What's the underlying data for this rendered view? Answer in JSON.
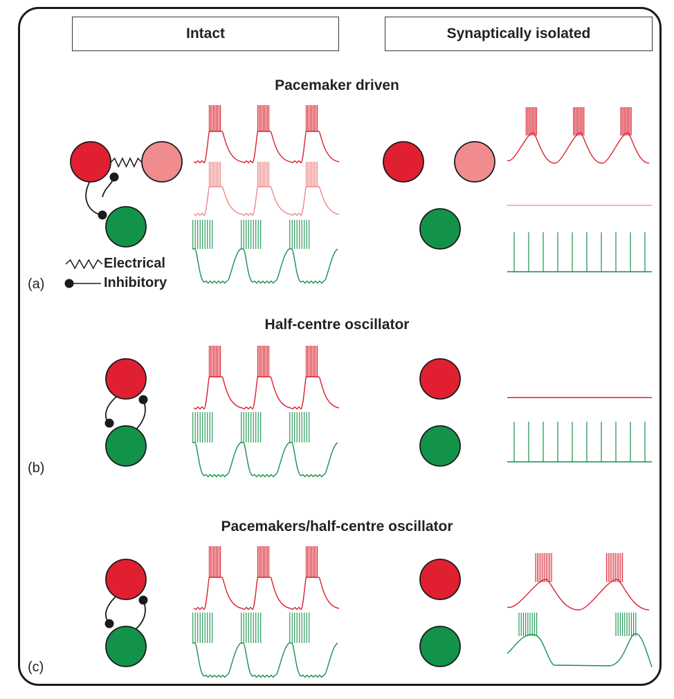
{
  "columns": {
    "intact": "Intact",
    "isolated": "Synaptically isolated"
  },
  "panels": [
    {
      "label": "(a)",
      "title": "Pacemaker driven"
    },
    {
      "label": "(b)",
      "title": "Half-centre oscillator"
    },
    {
      "label": "(c)",
      "title": "Pacemakers/half-centre oscillator"
    }
  ],
  "legend": {
    "electrical": "Electrical",
    "inhibitory": "Inhibitory"
  },
  "colors": {
    "red": "#e02030",
    "pink": "#f08c8e",
    "green": "#13924a",
    "red_trace": "#d8202e",
    "pink_trace": "#ee8888",
    "green_trace": "#16904a",
    "outline": "#1a1a1a"
  }
}
